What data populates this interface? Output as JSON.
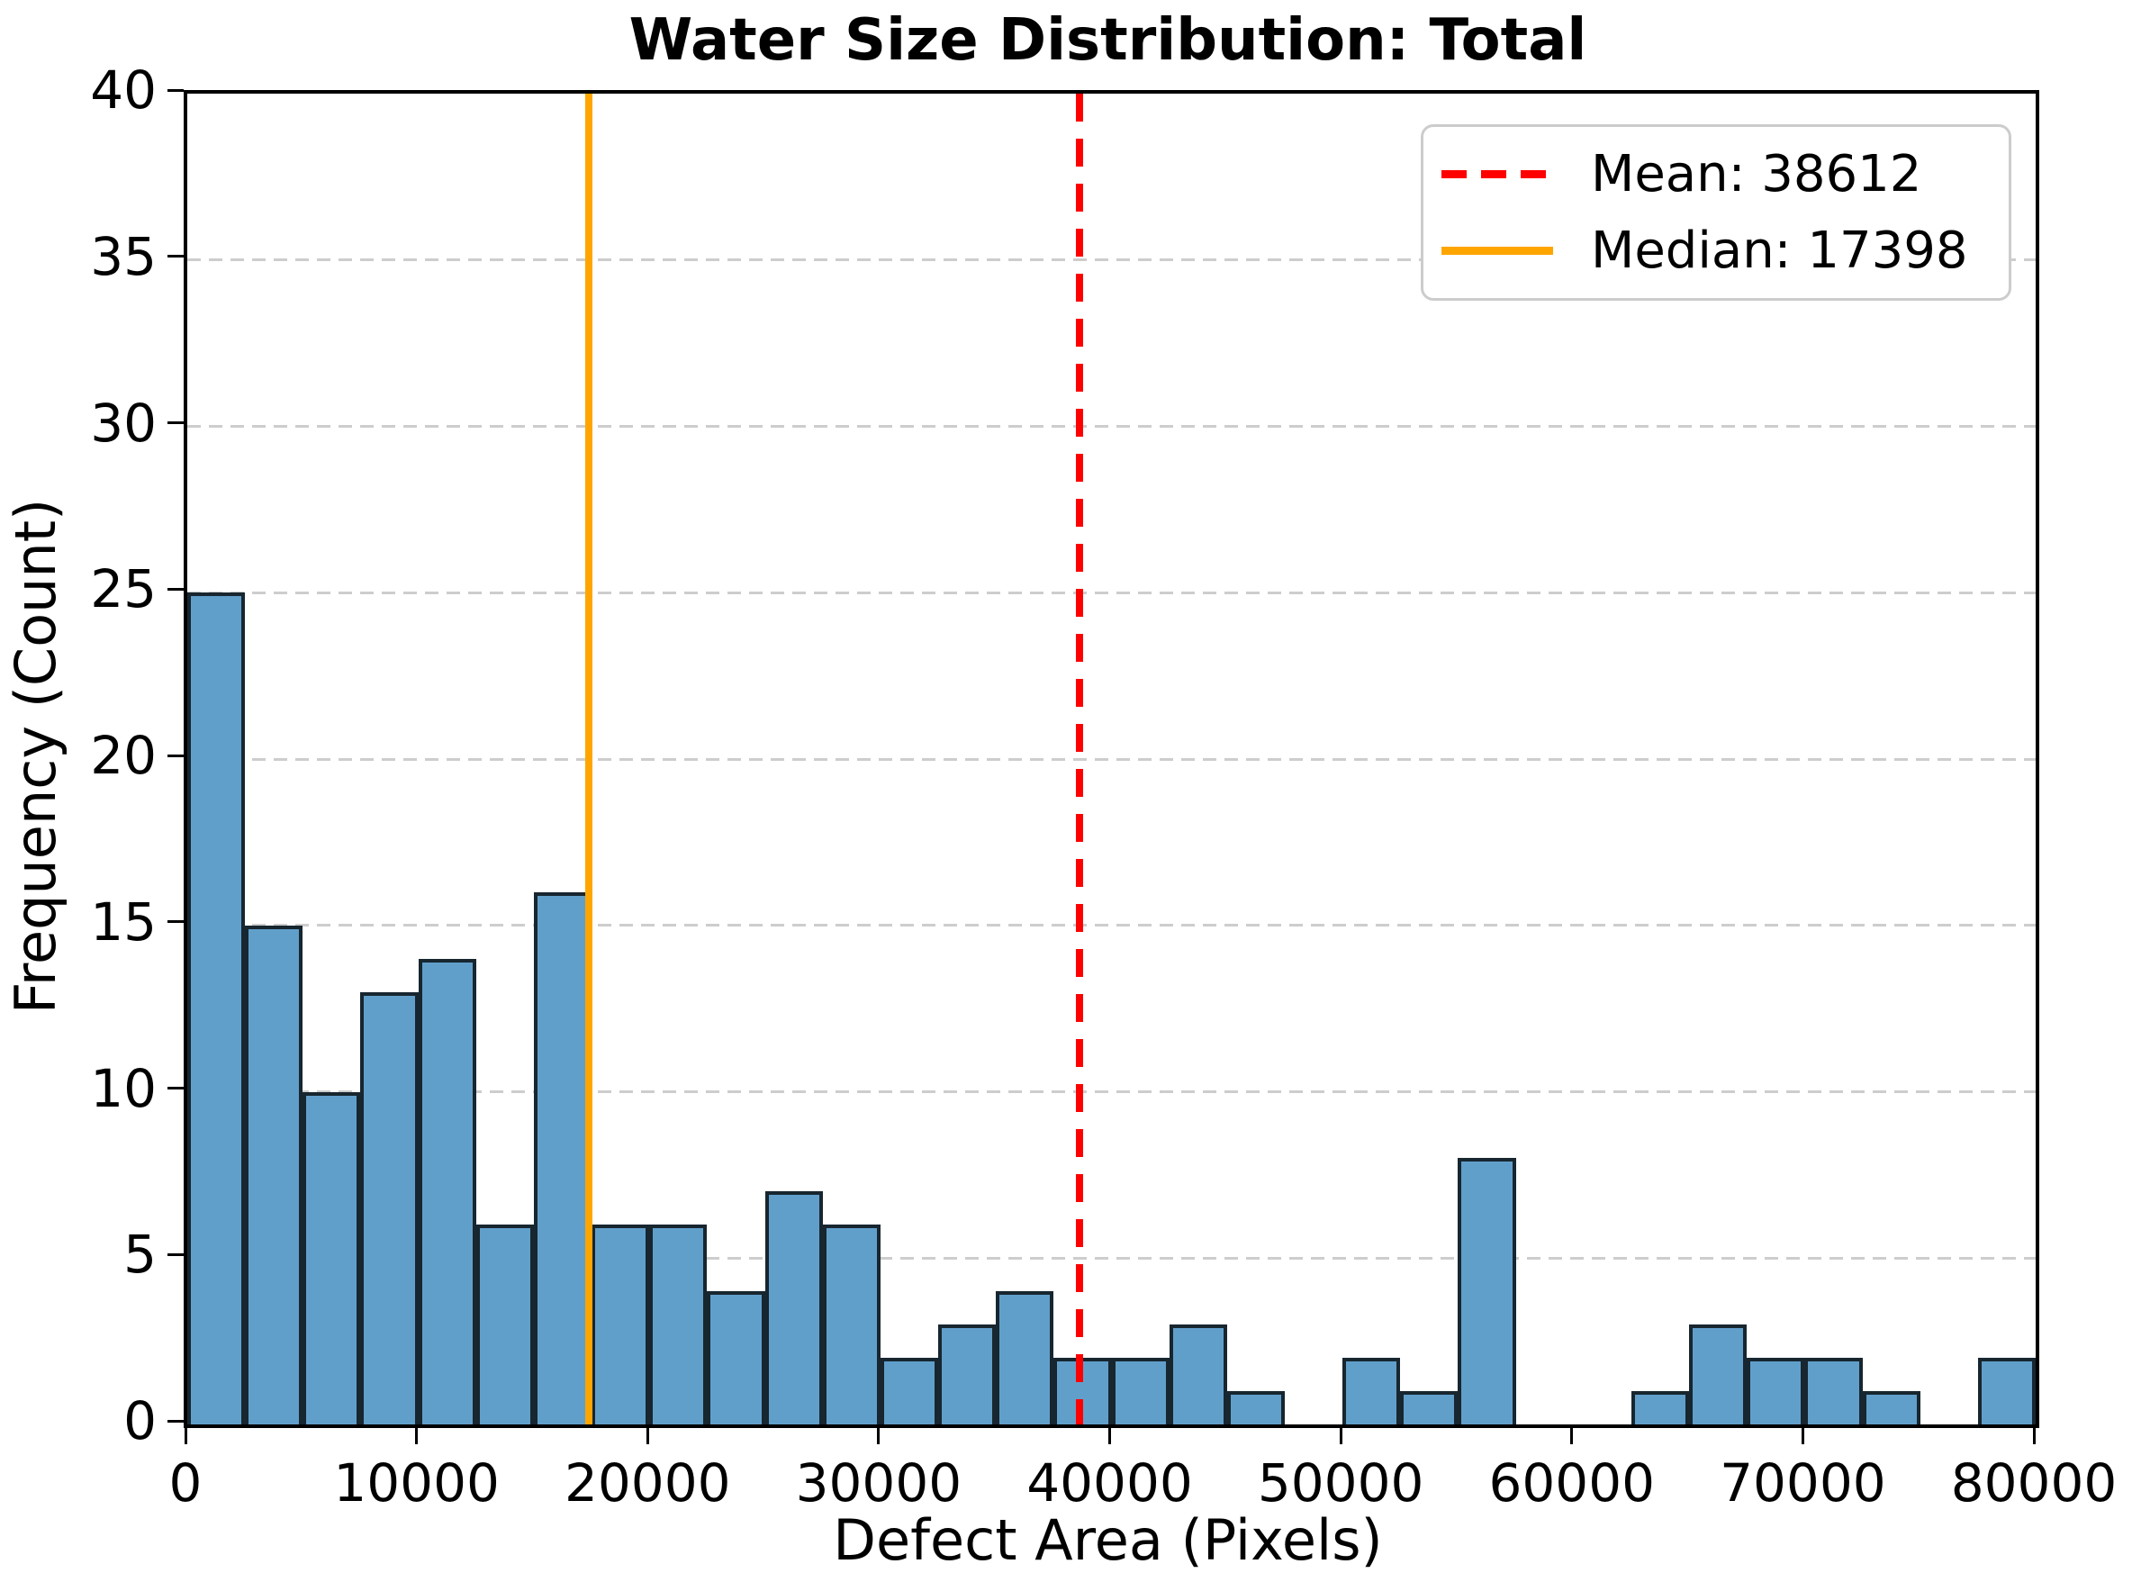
{
  "title": "Water Size Distribution: Total",
  "axes": {
    "xlabel": "Defect Area (Pixels)",
    "ylabel": "Frequency (Count)"
  },
  "legend": {
    "items": [
      {
        "name": "mean",
        "label": "Mean: 38612",
        "color": "#ff0000",
        "style": "dashed"
      },
      {
        "name": "median",
        "label": "Median: 17398",
        "color": "#ffa500",
        "style": "solid"
      }
    ]
  },
  "chart_data": {
    "type": "bar",
    "subtype": "histogram",
    "title": "Water Size Distribution: Total",
    "xlabel": "Defect Area (Pixels)",
    "ylabel": "Frequency (Count)",
    "bin_start": 0,
    "bin_width": 2500,
    "values": [
      25,
      15,
      10,
      13,
      14,
      6,
      16,
      6,
      6,
      4,
      7,
      6,
      2,
      3,
      4,
      2,
      2,
      3,
      1,
      0,
      2,
      1,
      8,
      0,
      0,
      1,
      3,
      2,
      2,
      1,
      0,
      2
    ],
    "xlim": [
      0,
      80000
    ],
    "ylim": [
      0,
      40
    ],
    "xticks": [
      0,
      10000,
      20000,
      30000,
      40000,
      50000,
      60000,
      70000,
      80000
    ],
    "yticks": [
      0,
      5,
      10,
      15,
      20,
      25,
      30,
      35,
      40
    ],
    "grid": "horizontal-dashed",
    "legend_position": "upper right",
    "mean": 38612,
    "median": 17398
  },
  "colors": {
    "bar_fill": "#619fcb",
    "bar_edge": "#17262f",
    "grid": "#cdcdcd",
    "mean_line": "#ff0000",
    "median_line": "#ffa500",
    "spine": "#000000",
    "text": "#000000",
    "background": "#ffffff",
    "legend_border": "#cccccc"
  }
}
